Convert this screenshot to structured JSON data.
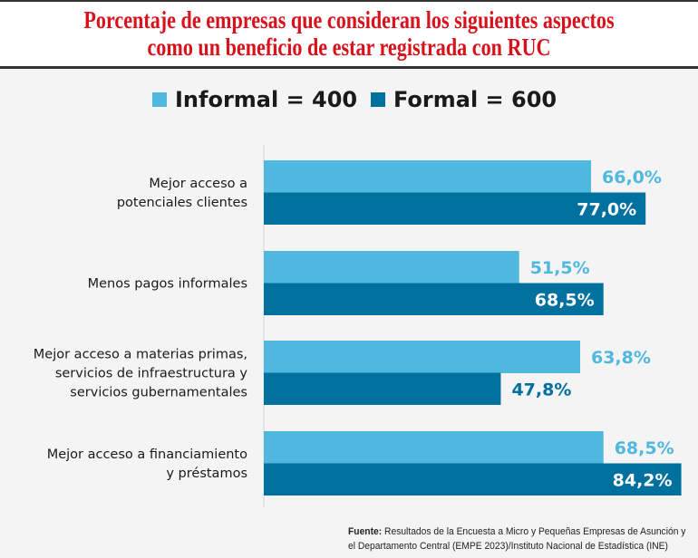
{
  "header": {
    "title_line1": "Porcentaje de empresas que consideran los siguientes aspectos",
    "title_line2": "como un beneficio de estar registrada con RUC"
  },
  "legend": [
    {
      "label": "Informal = 400",
      "color": "#4fb8de"
    },
    {
      "label": "Formal = 600",
      "color": "#00709f"
    }
  ],
  "source": {
    "label": "Fuente:",
    "line1": "Resultados de la Encuesta a Micro y Pequeñas Empresas de Asunción y",
    "line2": "el Departamento Central (EMPE 2023)/Instituto Nacional de Estadística (INE)"
  },
  "chart_data": {
    "type": "bar",
    "orientation": "horizontal",
    "title": "Porcentaje de empresas que consideran los siguientes aspectos como un beneficio de estar registrada con RUC",
    "categories": [
      [
        "Mejor acceso a",
        "potenciales clientes"
      ],
      [
        "Menos pagos informales"
      ],
      [
        "Mejor acceso a materias primas,",
        "servicios de infraestructura y",
        "servicios gubernamentales"
      ],
      [
        "Mejor acceso a financiamiento",
        "y préstamos"
      ]
    ],
    "series": [
      {
        "name": "Informal = 400",
        "color": "#4fb8de",
        "values": [
          66.0,
          51.5,
          63.8,
          68.5
        ],
        "labels": [
          "66,0%",
          "51,5%",
          "63,8%",
          "68,5%"
        ]
      },
      {
        "name": "Formal = 600",
        "color": "#00709f",
        "values": [
          77.0,
          68.5,
          47.8,
          84.2
        ],
        "labels": [
          "77,0%",
          "68,5%",
          "47,8%",
          "84,2%"
        ]
      }
    ],
    "xlabel": "",
    "ylabel": "",
    "xlim": [
      0,
      85
    ],
    "grid": false,
    "legend_position": "top"
  }
}
